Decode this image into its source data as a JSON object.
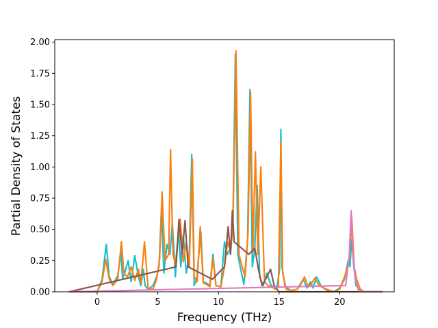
{
  "chart_data": {
    "type": "line",
    "title": "",
    "xlabel": "Frequency (THz)",
    "ylabel": "Partial Density of States",
    "xlim": [
      -3.5,
      24.5
    ],
    "ylim": [
      0,
      2.02
    ],
    "xticks": [
      0,
      5,
      10,
      15,
      20
    ],
    "xtick_labels": [
      "0",
      "5",
      "10",
      "15",
      "20"
    ],
    "yticks": [
      0,
      0.25,
      0.5,
      0.75,
      1.0,
      1.25,
      1.5,
      1.75,
      2.0
    ],
    "ytick_labels": [
      "0.00",
      "0.25",
      "0.50",
      "0.75",
      "1.00",
      "1.25",
      "1.50",
      "1.75",
      "2.00"
    ],
    "grid": false,
    "legend": "none",
    "colors": [
      "#1f77b4",
      "#ff7f0e",
      "#2ca02c",
      "#d62728",
      "#9467bd",
      "#8c564b",
      "#e377c2",
      "#7f7f7f",
      "#bcbd22",
      "#17becf"
    ],
    "peaks_description": "overlapping partial DOS curves; zero below 0 THz and above 21.5 THz",
    "series": [
      {
        "color": "#17becf",
        "x": [
          -2.3,
          0.0,
          0.4,
          0.75,
          1.0,
          1.3,
          1.7,
          1.95,
          2.1,
          2.3,
          2.55,
          2.8,
          3.1,
          3.4,
          3.6,
          3.8,
          3.95,
          4.2,
          4.6,
          4.9,
          5.1,
          5.3,
          5.5,
          5.75,
          6.0,
          6.2,
          6.45,
          6.7,
          6.9,
          7.1,
          7.35,
          7.6,
          7.8,
          8.0,
          8.2,
          8.55,
          8.75,
          9.0,
          9.3,
          9.55,
          9.8,
          10.2,
          10.5,
          10.75,
          11.0,
          11.2,
          11.4,
          11.6,
          11.8,
          12.1,
          12.4,
          12.6,
          12.8,
          13.0,
          13.2,
          13.4,
          13.7,
          14.0,
          14.3,
          14.6,
          14.85,
          15.05,
          15.15,
          15.25,
          15.5,
          16.0,
          16.5,
          16.8,
          17.0,
          17.3,
          17.6,
          17.8,
          18.1,
          18.5,
          19.0,
          19.5,
          20.0,
          20.4,
          20.7,
          20.85,
          21.0,
          21.15,
          21.35,
          21.6,
          22.0,
          23.5
        ],
        "y": [
          0.0,
          0.0,
          0.1,
          0.38,
          0.12,
          0.06,
          0.13,
          0.32,
          0.1,
          0.16,
          0.25,
          0.08,
          0.29,
          0.12,
          0.05,
          0.18,
          0.05,
          0.02,
          0.05,
          0.12,
          0.2,
          0.66,
          0.15,
          0.38,
          0.3,
          0.55,
          0.12,
          0.5,
          0.2,
          0.45,
          0.15,
          0.3,
          1.1,
          0.05,
          0.1,
          0.48,
          0.08,
          0.07,
          0.05,
          0.3,
          0.05,
          0.04,
          0.4,
          0.3,
          0.35,
          0.58,
          1.9,
          0.3,
          0.2,
          0.06,
          0.4,
          1.62,
          0.2,
          0.35,
          0.85,
          0.12,
          0.05,
          0.15,
          0.06,
          0.03,
          0.05,
          0.18,
          1.3,
          0.2,
          0.04,
          0.01,
          0.02,
          0.07,
          0.1,
          0.03,
          0.08,
          0.03,
          0.12,
          0.04,
          0.01,
          0.0,
          0.03,
          0.1,
          0.25,
          0.2,
          0.42,
          0.22,
          0.05,
          0.02,
          0.0,
          0.0
        ]
      },
      {
        "color": "#ff7f0e",
        "x": [
          -2.3,
          0.0,
          0.4,
          0.7,
          1.0,
          1.3,
          1.7,
          2.0,
          2.2,
          2.5,
          2.8,
          3.1,
          3.4,
          3.6,
          3.9,
          4.2,
          4.6,
          4.9,
          5.15,
          5.35,
          5.6,
          5.9,
          6.05,
          6.25,
          6.45,
          6.65,
          6.85,
          7.1,
          7.35,
          7.6,
          7.85,
          8.0,
          8.25,
          8.5,
          8.75,
          9.0,
          9.3,
          9.55,
          9.8,
          10.2,
          10.5,
          10.75,
          11.0,
          11.2,
          11.45,
          11.7,
          11.9,
          12.2,
          12.45,
          12.65,
          12.85,
          13.05,
          13.25,
          13.5,
          13.8,
          14.1,
          14.4,
          14.7,
          14.95,
          15.15,
          15.3,
          15.6,
          16.0,
          16.5,
          16.8,
          17.1,
          17.4,
          17.7,
          17.95,
          18.3,
          18.7,
          19.2,
          19.6,
          20.0,
          20.4,
          20.65,
          20.8,
          21.0,
          21.2,
          21.4,
          21.7,
          22.0,
          23.5
        ],
        "y": [
          0.0,
          0.0,
          0.08,
          0.26,
          0.1,
          0.05,
          0.1,
          0.4,
          0.15,
          0.12,
          0.2,
          0.09,
          0.18,
          0.07,
          0.4,
          0.03,
          0.02,
          0.1,
          0.26,
          0.8,
          0.25,
          0.3,
          1.14,
          0.3,
          0.22,
          0.42,
          0.58,
          0.24,
          0.4,
          0.2,
          1.06,
          0.12,
          0.08,
          0.52,
          0.07,
          0.06,
          0.04,
          0.27,
          0.05,
          0.04,
          0.2,
          0.4,
          0.32,
          0.52,
          1.93,
          0.3,
          0.22,
          0.12,
          0.48,
          1.6,
          0.32,
          1.12,
          0.3,
          1.0,
          0.08,
          0.05,
          0.04,
          0.02,
          0.04,
          1.2,
          0.15,
          0.02,
          0.01,
          0.02,
          0.06,
          0.12,
          0.04,
          0.07,
          0.11,
          0.05,
          0.03,
          0.01,
          0.0,
          0.02,
          0.12,
          0.2,
          0.26,
          0.6,
          0.2,
          0.1,
          0.02,
          0.0,
          0.0
        ]
      },
      {
        "color": "#8c564b",
        "x": [
          -2.3,
          6.5,
          6.75,
          7.0,
          7.25,
          7.5,
          9.5,
          10.5,
          10.8,
          11.0,
          11.15,
          11.3,
          12.5,
          13.0,
          13.3,
          13.6,
          14.0,
          14.3,
          14.6,
          15.0,
          23.5
        ],
        "y": [
          0.0,
          0.2,
          0.58,
          0.3,
          0.57,
          0.2,
          0.1,
          0.2,
          0.52,
          0.3,
          0.65,
          0.4,
          0.3,
          0.35,
          0.18,
          0.05,
          0.12,
          0.18,
          0.05,
          0.0,
          0.0
        ]
      },
      {
        "color": "#e377c2",
        "x": [
          -2.3,
          20.5,
          20.8,
          20.95,
          21.1,
          21.3,
          21.6,
          23.5
        ],
        "y": [
          0.0,
          0.05,
          0.3,
          0.65,
          0.3,
          0.1,
          0.0,
          0.0
        ]
      }
    ]
  }
}
